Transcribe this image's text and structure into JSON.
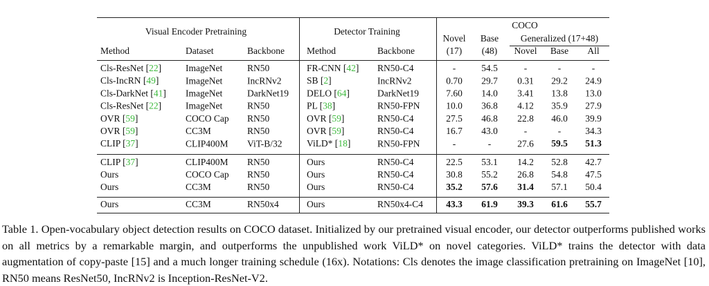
{
  "table": {
    "header": {
      "super": "COCO",
      "groups": [
        "Visual Encoder Pretraining",
        "Detector Training",
        "Novel",
        "Base",
        "Generalized (17+48)"
      ],
      "columns": [
        "Method",
        "Dataset",
        "Backbone",
        "Method",
        "Backbone",
        "(17)",
        "(48)",
        "Novel",
        "Base",
        "All"
      ]
    },
    "body": [
      [
        [
          [
            "Cls-ResNet [",
            {
              "text": "22",
              "style": "cite"
            },
            "]"
          ],
          "ImageNet",
          "RN50",
          [
            "FR-CNN [",
            {
              "text": "42",
              "style": "cite"
            },
            "]"
          ],
          "RN50-C4",
          "-",
          "54.5",
          "-",
          "-",
          "-"
        ],
        [
          [
            "Cls-IncRN [",
            {
              "text": "49",
              "style": "cite"
            },
            "]"
          ],
          "ImageNet",
          "IncRNv2",
          [
            "SB [",
            {
              "text": "2",
              "style": "cite"
            },
            "]"
          ],
          "IncRNv2",
          "0.70",
          "29.7",
          "0.31",
          "29.2",
          "24.9"
        ],
        [
          [
            "Cls-DarkNet [",
            {
              "text": "41",
              "style": "cite"
            },
            "]"
          ],
          "ImageNet",
          "DarkNet19",
          [
            "DELO [",
            {
              "text": "64",
              "style": "cite"
            },
            "]"
          ],
          "DarkNet19",
          "7.60",
          "14.0",
          "3.41",
          "13.8",
          "13.0"
        ],
        [
          [
            "Cls-ResNet [",
            {
              "text": "22",
              "style": "cite"
            },
            "]"
          ],
          "ImageNet",
          "RN50",
          [
            "PL [",
            {
              "text": "38",
              "style": "cite"
            },
            "]"
          ],
          "RN50-FPN",
          "10.0",
          "36.8",
          "4.12",
          "35.9",
          "27.9"
        ],
        [
          [
            "OVR [",
            {
              "text": "59",
              "style": "cite"
            },
            "]"
          ],
          "COCO Cap",
          "RN50",
          [
            "OVR [",
            {
              "text": "59",
              "style": "cite"
            },
            "]"
          ],
          "RN50-C4",
          "27.5",
          "46.8",
          "22.8",
          "46.0",
          "39.9"
        ],
        [
          [
            "OVR [",
            {
              "text": "59",
              "style": "cite"
            },
            "]"
          ],
          "CC3M",
          "RN50",
          [
            "OVR [",
            {
              "text": "59",
              "style": "cite"
            },
            "]"
          ],
          "RN50-C4",
          "16.7",
          "43.0",
          "-",
          "-",
          "34.3"
        ],
        [
          [
            "CLIP [",
            {
              "text": "37",
              "style": "cite"
            },
            "]"
          ],
          "CLIP400M",
          "ViT-B/32",
          [
            "ViLD* [",
            {
              "text": "18",
              "style": "cite"
            },
            "]"
          ],
          "RN50-FPN",
          "-",
          "-",
          "27.6",
          [
            {
              "text": "59.5",
              "style": "bold"
            }
          ],
          [
            {
              "text": "51.3",
              "style": "bold"
            }
          ]
        ]
      ],
      [
        [
          [
            "CLIP [",
            {
              "text": "37",
              "style": "cite"
            },
            "]"
          ],
          "CLIP400M",
          "RN50",
          "Ours",
          "RN50-C4",
          "22.5",
          "53.1",
          "14.2",
          "52.8",
          "42.7"
        ],
        [
          "Ours",
          "COCO Cap",
          "RN50",
          "Ours",
          "RN50-C4",
          "30.8",
          "55.2",
          "26.8",
          "54.8",
          "47.5"
        ],
        [
          "Ours",
          "CC3M",
          "RN50",
          "Ours",
          "RN50-C4",
          [
            {
              "text": "35.2",
              "style": "bold"
            }
          ],
          [
            {
              "text": "57.6",
              "style": "bold"
            }
          ],
          [
            {
              "text": "31.4",
              "style": "bold"
            }
          ],
          "57.1",
          "50.4"
        ]
      ],
      [
        [
          "Ours",
          "CC3M",
          "RN50x4",
          "Ours",
          "RN50x4-C4",
          [
            {
              "text": "43.3",
              "style": "bold"
            }
          ],
          [
            {
              "text": "61.9",
              "style": "bold"
            }
          ],
          [
            {
              "text": "39.3",
              "style": "bold"
            }
          ],
          [
            {
              "text": "61.6",
              "style": "bold"
            }
          ],
          [
            {
              "text": "55.7",
              "style": "bold"
            }
          ]
        ]
      ]
    ]
  },
  "caption": "Table 1. Open-vocabulary object detection results on COCO dataset. Initialized by our pretrained visual encoder, our detector outperforms published works on all metrics by a remarkable margin, and outperforms the unpublished work ViLD* on novel categories. ViLD* trains the detector with data augmentation of copy-paste [15] and a much longer training schedule (16x). Notations: Cls denotes the image classification pretraining on ImageNet [10], RN50 means ResNet50, IncRNv2 is Inception-ResNet-V2."
}
